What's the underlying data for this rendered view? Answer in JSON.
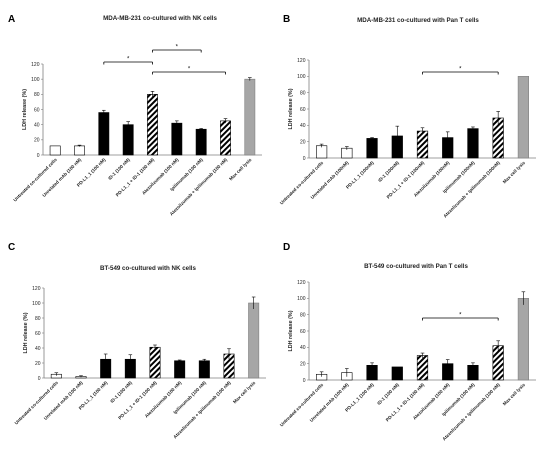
{
  "chart_data": [
    {
      "type": "bar",
      "panel": "A",
      "title": "MDA-MB-231 co-cultured with NK cells",
      "ylabel": "LDH release (%)",
      "ylim": [
        0,
        120
      ],
      "yticks": [
        0,
        20,
        40,
        60,
        80,
        100,
        120
      ],
      "categories": [
        "Untreated co-cultured cells",
        "Unrelated mAb (100 nM)",
        "PD-L1_1 (100 nM)",
        "ID-1 (100 nM)",
        "PD-L1_1 + ID-1 (100 nM)",
        "Atezolizumab (100 nM)",
        "Ipilimumab (100 nM)",
        "Atezolizumab + Ipilimumab (100 nM)",
        "Max cell lysis"
      ],
      "values": [
        12,
        12,
        56,
        40,
        80,
        42,
        34,
        45,
        100
      ],
      "errors": [
        0,
        1,
        3,
        4,
        4,
        3,
        1,
        3,
        2
      ],
      "styles": [
        "white",
        "white",
        "black",
        "black",
        "hatch",
        "black",
        "black",
        "hatch",
        "gray"
      ],
      "significance": [
        {
          "from": 4,
          "to": 6,
          "label": "*"
        },
        {
          "from": 2,
          "to": 4,
          "label": "*"
        },
        {
          "from": 4,
          "to": 7,
          "label": "*"
        }
      ]
    },
    {
      "type": "bar",
      "panel": "B",
      "title": "MDA-MB-231 co-cultured with Pan T cells",
      "ylabel": "LDH release (%)",
      "ylim": [
        0,
        120
      ],
      "yticks": [
        0,
        20,
        40,
        60,
        80,
        100,
        120
      ],
      "categories": [
        "Untreated co-cultured cells",
        "Unrelated mAb (100nM)",
        "PD-L1_1 (100nM)",
        "ID-1 (100nM)",
        "PD-L1_1 + ID-1 (100nM)",
        "Atezolizumab (100nM)",
        "Ipilimumab (100nM)",
        "Atezolizumab + Ipilimumab (100nM)",
        "Max cell lysis"
      ],
      "values": [
        15,
        12,
        24,
        27,
        33,
        25,
        36,
        49,
        100
      ],
      "errors": [
        2,
        2,
        1,
        12,
        4,
        7,
        2,
        8,
        0
      ],
      "styles": [
        "white",
        "white",
        "black",
        "black",
        "hatch",
        "black",
        "black",
        "hatch",
        "gray"
      ],
      "significance": [
        {
          "from": 4,
          "to": 7,
          "label": "*"
        }
      ]
    },
    {
      "type": "bar",
      "panel": "C",
      "title": "BT-549 co-cultured with NK cells",
      "ylabel": "LDH release (%)",
      "ylim": [
        0,
        120
      ],
      "yticks": [
        0,
        20,
        40,
        60,
        80,
        100,
        120
      ],
      "categories": [
        "Untreated co-cultured cells",
        "Unrelated mAb (100 nM)",
        "PD-L1_1 (100 nM)",
        "ID-1 (100 nM)",
        "PD-L1_1 + ID-1 (100 nM)",
        "Atezolizumab (100 nM)",
        "Ipilimumab (100 nM)",
        "Atezolizumab + Ipilimumab (100 nM)",
        "Max cell lysis"
      ],
      "values": [
        5,
        2,
        25,
        25,
        41,
        23,
        23,
        32,
        100
      ],
      "errors": [
        2,
        1,
        7,
        6,
        3,
        1,
        2,
        7,
        8
      ],
      "styles": [
        "white",
        "white",
        "black",
        "black",
        "hatch",
        "black",
        "black",
        "hatch",
        "gray"
      ],
      "significance": []
    },
    {
      "type": "bar",
      "panel": "D",
      "title": "BT-549 co-cultured with Pan T cells",
      "ylabel": "LDH release (%)",
      "ylim": [
        0,
        120
      ],
      "yticks": [
        0,
        20,
        40,
        60,
        80,
        100,
        120
      ],
      "categories": [
        "Untreated co-cultured cells",
        "Unrelated mAb (100 nM)",
        "PD-L1_1 (100 nM)",
        "ID-1 (100 nM)",
        "PD-L1_1 + ID-1 (100 nM)",
        "Atezolizumab (100 nM)",
        "Ipilimumab (100 nM)",
        "Atezolizumab + Ipilimumab (100 nM)",
        "Max cell lysis"
      ],
      "values": [
        7,
        9,
        18,
        16,
        30,
        20,
        18,
        42,
        100
      ],
      "errors": [
        3,
        5,
        3,
        0,
        3,
        5,
        3,
        6,
        8
      ],
      "styles": [
        "white",
        "white",
        "black",
        "black",
        "hatch",
        "black",
        "black",
        "hatch",
        "gray"
      ],
      "significance": [
        {
          "from": 4,
          "to": 7,
          "label": "*"
        }
      ]
    }
  ],
  "colors": {
    "black_bar": "#000000",
    "white_bar": "#ffffff",
    "gray_bar": "#a6a6a6",
    "axis": "#7f7f7f",
    "text": "#222222"
  }
}
